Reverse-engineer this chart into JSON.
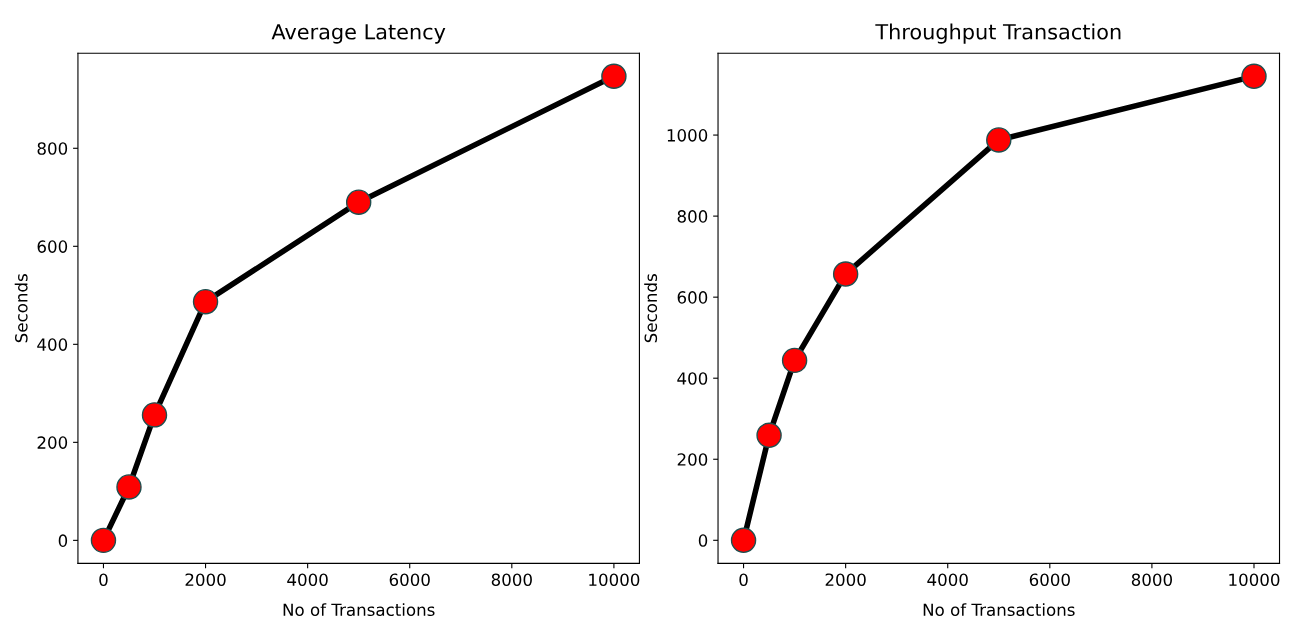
{
  "chart_data": [
    {
      "type": "line",
      "title": "Average Latency",
      "xlabel": "No of Transactions",
      "ylabel": "Seconds",
      "x": [
        0,
        500,
        1000,
        2000,
        5000,
        10000
      ],
      "series": [
        {
          "color": "#000000",
          "colors": [
            "#ff0000",
            "#ff0000",
            "#ff0000",
            "#ff0000",
            "#ff0000",
            "#ff0000"
          ],
          "values": [
            0,
            109,
            256,
            487,
            690,
            947
          ]
        }
      ],
      "xlim": [
        -500,
        10500
      ],
      "ylim": [
        -47,
        994
      ],
      "xticks": [
        0,
        2000,
        4000,
        6000,
        8000,
        10000
      ],
      "yticks": [
        0,
        200,
        400,
        600,
        800
      ],
      "marker": "circle",
      "line_style": "solid",
      "grid": false
    },
    {
      "type": "line",
      "title": "Throughput Transaction",
      "xlabel": "No of Transactions",
      "ylabel": "Seconds",
      "x": [
        0,
        500,
        1000,
        2000,
        5000,
        10000
      ],
      "series": [
        {
          "color": "#000000",
          "colors": [
            "#ff0000",
            "#ff0000",
            "#ff0000",
            "#ff0000",
            "#ff0000",
            "#ff0000"
          ],
          "values": [
            0,
            259,
            444,
            657,
            988,
            1145
          ]
        }
      ],
      "xlim": [
        -500,
        10500
      ],
      "ylim": [
        -57,
        1202
      ],
      "xticks": [
        0,
        2000,
        4000,
        6000,
        8000,
        10000
      ],
      "yticks": [
        0,
        200,
        400,
        600,
        800,
        1000
      ],
      "marker": "circle",
      "line_style": "solid",
      "grid": false
    }
  ]
}
